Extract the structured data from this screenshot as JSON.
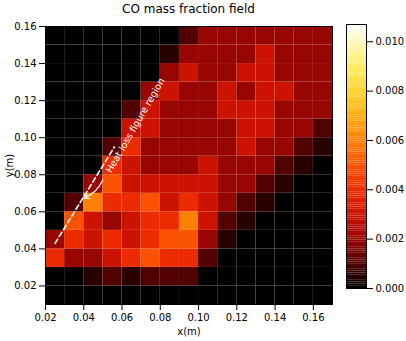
{
  "chart_data": {
    "type": "heatmap",
    "title": "CO mass fraction field",
    "x_label": "x(m)",
    "y_label": "y(m)",
    "xlim": [
      0.02,
      0.17
    ],
    "ylim": [
      0.01,
      0.16
    ],
    "xticks": [
      0.02,
      0.04,
      0.06,
      0.08,
      {
        "value": 0.1,
        "label": "0.10"
      },
      0.12,
      0.14,
      0.16
    ],
    "yticks": [
      0.02,
      0.04,
      0.06,
      0.08,
      {
        "value": 0.1,
        "label": "0.10"
      },
      0.12,
      0.14,
      0.16
    ],
    "x": [
      0.025,
      0.035,
      0.045,
      0.055,
      0.065,
      0.075,
      0.085,
      0.095,
      0.105,
      0.115,
      0.125,
      0.135,
      0.145,
      0.155,
      0.165
    ],
    "y": [
      0.015,
      0.025,
      0.035,
      0.045,
      0.055,
      0.065,
      0.075,
      0.085,
      0.095,
      0.105,
      0.115,
      0.125,
      0.135,
      0.145,
      0.155
    ],
    "values": [
      [
        0,
        0,
        0,
        0,
        0,
        0,
        0,
        0,
        0,
        0,
        0,
        0,
        0,
        0,
        0
      ],
      [
        0,
        0,
        0.0005,
        0.001,
        0.0005,
        0.001,
        0.001,
        0.001,
        0,
        0,
        0,
        0,
        0,
        0,
        0
      ],
      [
        0.004,
        0.002,
        0.002,
        0.003,
        0.004,
        0.005,
        0.004,
        0.004,
        0.001,
        0,
        0,
        0,
        0,
        0,
        0
      ],
      [
        0.002,
        0.004,
        0.003,
        0.004,
        0.003,
        0.004,
        0.005,
        0.005,
        0.002,
        0.0005,
        0,
        0,
        0,
        0,
        0
      ],
      [
        0,
        0.005,
        0.003,
        0.002,
        0.003,
        0.004,
        0.004,
        0.006,
        0.003,
        0.001,
        0.0005,
        0,
        0,
        0,
        0
      ],
      [
        0,
        0.001,
        0.006,
        0.004,
        0.004,
        0.005,
        0.003,
        0.004,
        0.003,
        0.002,
        0.001,
        0.0005,
        0,
        0,
        0
      ],
      [
        0,
        0,
        0.002,
        0.005,
        0.003,
        0.003,
        0.003,
        0.003,
        0.003,
        0.002,
        0.002,
        0.001,
        0.0005,
        0,
        0
      ],
      [
        0,
        0,
        0,
        0.004,
        0.003,
        0.002,
        0.002,
        0.002,
        0.003,
        0.002,
        0.002,
        0.002,
        0.001,
        0.0005,
        0
      ],
      [
        0,
        0,
        0,
        0.001,
        0.004,
        0.002,
        0.002,
        0.002,
        0.002,
        0.002,
        0.003,
        0.002,
        0.002,
        0.001,
        0.0005
      ],
      [
        0,
        0,
        0,
        0,
        0.003,
        0.003,
        0.002,
        0.002,
        0.002,
        0.002,
        0.003,
        0.003,
        0.002,
        0.002,
        0.001
      ],
      [
        0,
        0,
        0,
        0,
        0.001,
        0.003,
        0.002,
        0.002,
        0.002,
        0.003,
        0.003,
        0.003,
        0.002,
        0.002,
        0.002
      ],
      [
        0,
        0,
        0,
        0,
        0,
        0.002,
        0.003,
        0.002,
        0.002,
        0.003,
        0.002,
        0.003,
        0.003,
        0.002,
        0.002
      ],
      [
        0,
        0,
        0,
        0,
        0,
        0,
        0.002,
        0.003,
        0.002,
        0.002,
        0.003,
        0.003,
        0.002,
        0.002,
        0.002
      ],
      [
        0,
        0,
        0,
        0,
        0,
        0,
        0.0005,
        0.002,
        0.002,
        0.002,
        0.002,
        0.003,
        0.002,
        0.002,
        0.002
      ],
      [
        0,
        0,
        0,
        0,
        0,
        0,
        0,
        0.001,
        0.002,
        0.002,
        0.002,
        0.002,
        0.002,
        0.002,
        0.002
      ]
    ],
    "colorbar": {
      "range": [
        0,
        0.0107
      ],
      "ticks": [
        {
          "value": 0,
          "label": "0.000"
        },
        {
          "value": 0.002,
          "label": "0.002"
        },
        {
          "value": 0.004,
          "label": "0.004"
        },
        {
          "value": 0.006,
          "label": "0.006"
        },
        {
          "value": 0.008,
          "label": "0.008"
        },
        {
          "value": 0.01,
          "label": "0.010"
        }
      ]
    },
    "annotations": [
      {
        "text": "Heat loss figure region",
        "line_x": [
          0.025,
          0.056
        ],
        "line_y": [
          0.043,
          0.095
        ]
      }
    ]
  }
}
